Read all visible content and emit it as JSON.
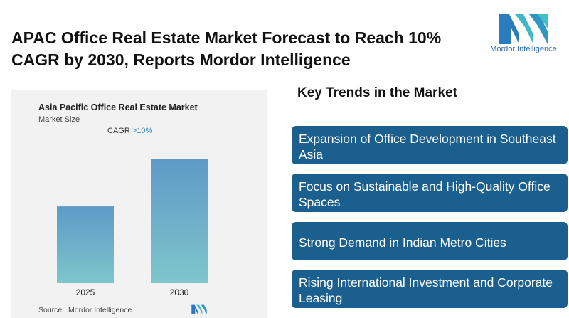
{
  "headline": "APAC Office Real Estate Market Forecast to Reach 10% CAGR by 2030, Reports Mordor Intelligence",
  "logo": {
    "text": "Mordor Intelligence",
    "icon": "mordor-intelligence-logo",
    "color": "#2a6db0"
  },
  "chart_data": {
    "type": "bar",
    "title": "Asia Pacific Office Real Estate Market",
    "subtitle": "Market Size",
    "annotation": {
      "label": "CAGR",
      "value": ">10%"
    },
    "categories": [
      "2025",
      "2030"
    ],
    "values": [
      1.0,
      1.62
    ],
    "ylim": [
      0,
      1.65
    ],
    "grid": false,
    "legend": "none",
    "bar_gradient": [
      "#5e9ac6",
      "#7ec6cc"
    ]
  },
  "source": "Source :  Mordor Intelligence",
  "trends": {
    "title": "Key Trends in the Market",
    "items": [
      "Expansion of Office Development in Southeast Asia",
      "Focus on Sustainable and High-Quality Office Spaces",
      "Strong Demand in Indian Metro Cities",
      "Rising International Investment and Corporate Leasing"
    ],
    "color": "#1a5f8e"
  }
}
